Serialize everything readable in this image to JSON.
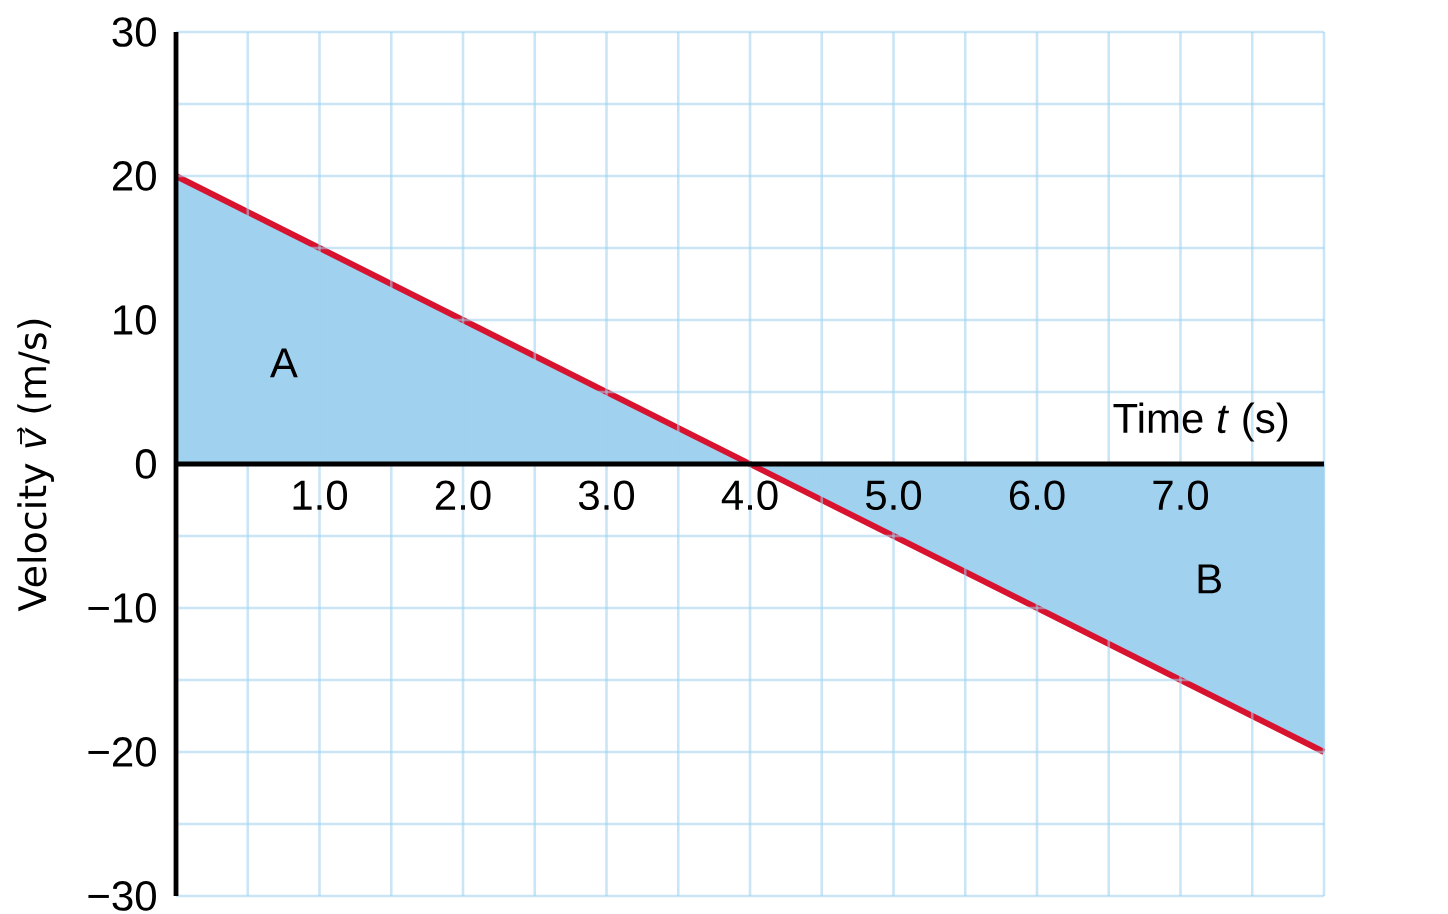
{
  "chart_data": {
    "type": "line",
    "xlabel": "Time *t* (s)",
    "ylabel": "Velocity *v⃗* (m/s)",
    "x": [
      0,
      4,
      8
    ],
    "series": [
      {
        "type": "area",
        "color": "#a0d2ef",
        "x": [
          0,
          4
        ],
        "values": [
          20,
          0
        ]
      },
      {
        "type": "area",
        "color": "#a0d2ef",
        "x": [
          4,
          8
        ],
        "values": [
          0,
          -20
        ]
      },
      {
        "color": "#d7132f",
        "values": [
          20,
          0,
          -20
        ]
      }
    ],
    "xlim": [
      0,
      8
    ],
    "ylim": [
      -30,
      30
    ],
    "xticks": [
      {
        "value": 0,
        "label": null
      },
      {
        "value": 0.5,
        "label": null
      },
      {
        "value": 1,
        "label": "1.0"
      },
      {
        "value": 1.5,
        "label": null
      },
      {
        "value": 2,
        "label": "2.0"
      },
      {
        "value": 2.5,
        "label": null
      },
      {
        "value": 3,
        "label": "3.0"
      },
      {
        "value": 3.5,
        "label": null
      },
      {
        "value": 4,
        "label": "4.0"
      },
      {
        "value": 4.5,
        "label": null
      },
      {
        "value": 5,
        "label": "5.0"
      },
      {
        "value": 5.5,
        "label": null
      },
      {
        "value": 6,
        "label": "6.0"
      },
      {
        "value": 6.5,
        "label": null
      },
      {
        "value": 7,
        "label": "7.0"
      },
      {
        "value": 7.5,
        "label": null
      },
      {
        "value": 8,
        "label": null
      }
    ],
    "yticks": [
      {
        "value": -30,
        "label": "−30"
      },
      {
        "value": -25,
        "label": null
      },
      {
        "value": -20,
        "label": "−20"
      },
      {
        "value": -15,
        "label": null
      },
      {
        "value": -10,
        "label": "−10"
      },
      {
        "value": -5,
        "label": null
      },
      0,
      {
        "value": 5,
        "label": null
      },
      10,
      {
        "value": 15,
        "label": null
      },
      20,
      {
        "value": 25,
        "label": null
      },
      30
    ],
    "grid": true,
    "line_style": "solid",
    "annotations": [
      "A",
      "B"
    ]
  }
}
